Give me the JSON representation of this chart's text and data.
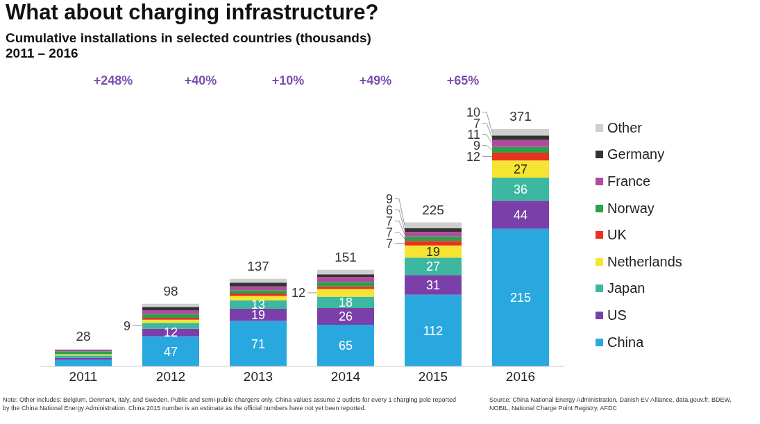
{
  "chart_data": {
    "type": "bar",
    "title": "What about charging infrastructure?",
    "subtitle": "Cumulative installations in selected countries (thousands)\n2011 – 2016",
    "categories": [
      "2011",
      "2012",
      "2013",
      "2014",
      "2015",
      "2016"
    ],
    "stacked": true,
    "legend": "right",
    "series": [
      {
        "name": "China",
        "color": "#29a8e0",
        "values": [
          10,
          47,
          71,
          65,
          112,
          215
        ],
        "value_labels": [
          null,
          "47",
          "71",
          "65",
          "112",
          "215"
        ]
      },
      {
        "name": "US",
        "color": "#7a3fa8",
        "values": [
          3,
          12,
          19,
          26,
          31,
          44
        ],
        "value_labels": [
          null,
          "12",
          "19",
          "26",
          "31",
          "44"
        ]
      },
      {
        "name": "Japan",
        "color": "#3cb8a0",
        "values": [
          4,
          9,
          13,
          18,
          27,
          36
        ],
        "value_labels": [
          null,
          "9",
          "13",
          "18",
          "27",
          "36"
        ]
      },
      {
        "name": "Netherlands",
        "color": "#f5e531",
        "values": [
          2,
          5,
          7,
          12,
          19,
          27
        ],
        "value_labels": [
          null,
          null,
          null,
          "12",
          "19",
          "27"
        ]
      },
      {
        "name": "UK",
        "color": "#e8321e",
        "values": [
          null,
          3,
          4,
          4,
          7,
          12
        ],
        "value_labels": [
          null,
          null,
          null,
          null,
          "7",
          "12"
        ]
      },
      {
        "name": "Norway",
        "color": "#2ea04a",
        "values": [
          4,
          6,
          5,
          7,
          7,
          9
        ],
        "value_labels": [
          null,
          null,
          null,
          null,
          "7",
          "9"
        ]
      },
      {
        "name": "France",
        "color": "#b24aa0",
        "values": [
          1,
          6,
          6,
          8,
          7,
          11
        ],
        "value_labels": [
          null,
          null,
          null,
          null,
          "7",
          "11"
        ]
      },
      {
        "name": "Germany",
        "color": "#333333",
        "values": [
          1,
          5,
          6,
          4,
          6,
          7
        ],
        "value_labels": [
          null,
          null,
          null,
          null,
          "6",
          "7"
        ]
      },
      {
        "name": "Other",
        "color": "#cfcfcf",
        "values": [
          2,
          5,
          6,
          7,
          9,
          10
        ],
        "value_labels": [
          null,
          null,
          null,
          null,
          "9",
          "10"
        ]
      }
    ],
    "totals": [
      "28",
      "98",
      "137",
      "151",
      "225",
      "371"
    ],
    "annotations": [
      "+248%",
      "+40%",
      "+10%",
      "+49%",
      "+65%",
      "Note: Other includes: Belgium, Denmark, Italy, and Sweden. Public and semi-public chargers only. China values assume 2 outlets for every 1 charging pole reported by the China National Energy Administration. China 2015 number is an estimate as the official numbers have not yet been reported.",
      "Source: China National Energy Administration, Danish EV Alliance, data.gouv.fr, BDEW, NOBIL, National Charge Point Registry, AFDC"
    ]
  }
}
